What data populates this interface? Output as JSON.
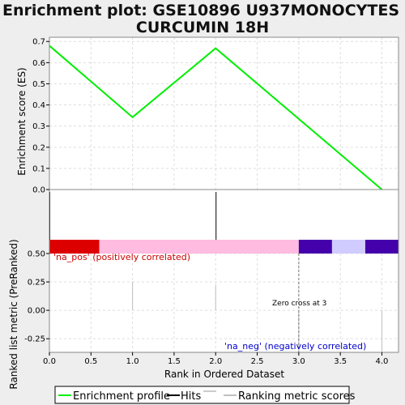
{
  "chart_data": {
    "title_line1": "Enrichment plot: GSE10896 U937MONOCYTES",
    "title_line2": "CURCUMIN 18H",
    "top_panel": {
      "type": "line",
      "ylabel": "Enrichment score (ES)",
      "ylim": [
        0.0,
        0.72
      ],
      "yticks": [
        "0.0",
        "0.1",
        "0.2",
        "0.3",
        "0.4",
        "0.5",
        "0.6",
        "0.7"
      ],
      "yticks_values": [
        0.0,
        0.1,
        0.2,
        0.3,
        0.4,
        0.5,
        0.6,
        0.7
      ],
      "x": [
        0,
        1,
        2,
        4
      ],
      "y": [
        0.68,
        0.342,
        0.668,
        0.0
      ],
      "color": "#00ee00"
    },
    "hits": {
      "positions": [
        0,
        2
      ],
      "color": "#000000"
    },
    "color_bar": {
      "segments": [
        {
          "from": 0.0,
          "to": 0.6,
          "color": "#dd0000"
        },
        {
          "from": 0.6,
          "to": 3.0,
          "color": "#ffbbe0"
        },
        {
          "from": 3.0,
          "to": 3.4,
          "color": "#4400aa"
        },
        {
          "from": 3.4,
          "to": 3.8,
          "color": "#d0ccff"
        },
        {
          "from": 3.8,
          "to": 4.2,
          "color": "#4400aa"
        }
      ]
    },
    "bottom_panel": {
      "type": "bar",
      "ylabel": "Ranked list metric (PreRanked)",
      "ylim": [
        -0.37,
        0.5
      ],
      "yticks": [
        "0.50",
        "0.25",
        "0.00",
        "-0.25"
      ],
      "yticks_values": [
        0.5,
        0.25,
        0.0,
        -0.25
      ],
      "x": [
        0,
        1,
        2,
        3,
        4
      ],
      "values": [
        0.5,
        0.25,
        0.22,
        -0.37,
        -0.37
      ],
      "pos_label": "'na_pos' (positively correlated)",
      "neg_label": "'na_neg' (negatively correlated)",
      "pos_color": "#cc0000",
      "neg_color": "#0000cc",
      "zero_cross_label": "Zero cross at 3",
      "zero_cross_x": 3
    },
    "xaxis": {
      "label": "Rank in Ordered Dataset",
      "xlim": [
        0,
        4.2
      ],
      "ticks": [
        "0.0",
        "0.5",
        "1.0",
        "1.5",
        "2.0",
        "2.5",
        "3.0",
        "3.5",
        "4.0"
      ],
      "tick_values": [
        0.0,
        0.5,
        1.0,
        1.5,
        2.0,
        2.5,
        3.0,
        3.5,
        4.0
      ]
    },
    "legend": {
      "placement": "bottom",
      "items": [
        {
          "label": "Enrichment profile",
          "color": "#00ee00"
        },
        {
          "label": "Hits",
          "color": "#000000"
        },
        {
          "label": "Ranking metric scores",
          "color": "#c0c0c0"
        }
      ]
    }
  }
}
